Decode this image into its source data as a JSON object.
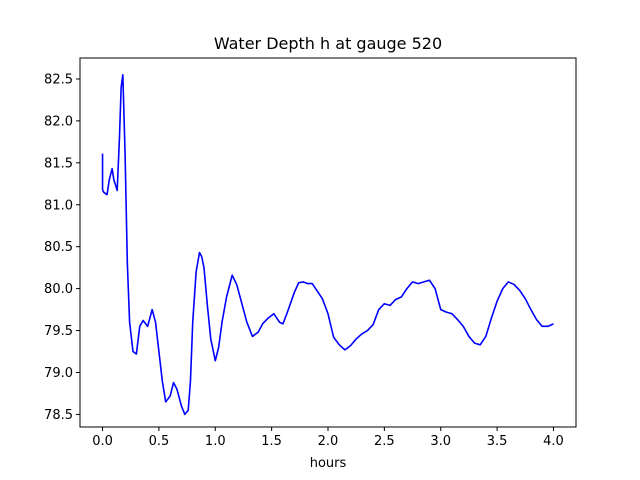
{
  "chart_data": {
    "type": "line",
    "title": "Water Depth h at gauge 520",
    "xlabel": "hours",
    "ylabel": "",
    "xlim": [
      -0.2,
      4.2
    ],
    "ylim": [
      78.35,
      82.75
    ],
    "grid": false,
    "x_ticks": [
      0.0,
      0.5,
      1.0,
      1.5,
      2.0,
      2.5,
      3.0,
      3.5,
      4.0
    ],
    "x_tick_labels": [
      "0.0",
      "0.5",
      "1.0",
      "1.5",
      "2.0",
      "2.5",
      "3.0",
      "3.5",
      "4.0"
    ],
    "y_ticks": [
      78.5,
      79.0,
      79.5,
      80.0,
      80.5,
      81.0,
      81.5,
      82.0,
      82.5
    ],
    "y_tick_labels": [
      "78.5",
      "79.0",
      "79.5",
      "80.0",
      "80.5",
      "81.0",
      "81.5",
      "82.0",
      "82.5"
    ],
    "series": [
      {
        "color": "#0000ff",
        "x": [
          0.0,
          0.0,
          0.01,
          0.04,
          0.06,
          0.085,
          0.1,
          0.13,
          0.15,
          0.165,
          0.18,
          0.2,
          0.22,
          0.24,
          0.27,
          0.3,
          0.33,
          0.36,
          0.4,
          0.44,
          0.47,
          0.5,
          0.53,
          0.56,
          0.6,
          0.63,
          0.66,
          0.7,
          0.73,
          0.76,
          0.78,
          0.8,
          0.83,
          0.86,
          0.88,
          0.9,
          0.93,
          0.96,
          1.0,
          1.03,
          1.06,
          1.1,
          1.15,
          1.19,
          1.23,
          1.28,
          1.33,
          1.38,
          1.42,
          1.47,
          1.52,
          1.57,
          1.6,
          1.64,
          1.7,
          1.74,
          1.78,
          1.82,
          1.86,
          1.9,
          1.95,
          2.0,
          2.05,
          2.1,
          2.15,
          2.2,
          2.25,
          2.3,
          2.35,
          2.4,
          2.45,
          2.5,
          2.55,
          2.6,
          2.65,
          2.7,
          2.75,
          2.8,
          2.85,
          2.9,
          2.95,
          3.0,
          3.05,
          3.1,
          3.15,
          3.2,
          3.25,
          3.3,
          3.35,
          3.4,
          3.45,
          3.5,
          3.55,
          3.6,
          3.65,
          3.7,
          3.75,
          3.8,
          3.85,
          3.9,
          3.95,
          4.0
        ],
        "y": [
          81.61,
          81.18,
          81.15,
          81.12,
          81.3,
          81.43,
          81.3,
          81.17,
          81.8,
          82.4,
          82.55,
          81.6,
          80.3,
          79.6,
          79.25,
          79.22,
          79.55,
          79.62,
          79.55,
          79.75,
          79.6,
          79.25,
          78.9,
          78.65,
          78.72,
          78.88,
          78.8,
          78.6,
          78.5,
          78.55,
          78.9,
          79.6,
          80.2,
          80.43,
          80.38,
          80.25,
          79.8,
          79.4,
          79.14,
          79.3,
          79.6,
          79.9,
          80.16,
          80.05,
          79.85,
          79.6,
          79.43,
          79.48,
          79.58,
          79.65,
          79.7,
          79.6,
          79.58,
          79.72,
          79.95,
          80.07,
          80.08,
          80.06,
          80.06,
          79.98,
          79.88,
          79.7,
          79.42,
          79.33,
          79.27,
          79.32,
          79.4,
          79.46,
          79.5,
          79.57,
          79.75,
          79.82,
          79.8,
          79.87,
          79.9,
          80.0,
          80.08,
          80.06,
          80.08,
          80.1,
          80.0,
          79.75,
          79.72,
          79.7,
          79.63,
          79.55,
          79.43,
          79.35,
          79.33,
          79.43,
          79.65,
          79.85,
          80.0,
          80.08,
          80.05,
          79.98,
          79.88,
          79.75,
          79.63,
          79.55,
          79.55,
          79.58
        ]
      }
    ]
  }
}
